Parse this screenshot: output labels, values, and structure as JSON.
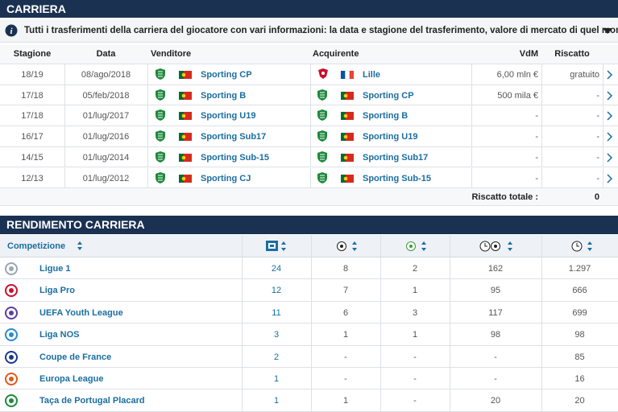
{
  "header": {
    "title": "CARRIERA"
  },
  "info": {
    "text": "Tutti i trasferimenti della carriera del giocatore con vari informazioni: la data e stagione del trasferimento, valore di mercato di quel momento..."
  },
  "transfers": {
    "columns": [
      "Stagione",
      "Data",
      "Venditore",
      "Acquirente",
      "VdM",
      "Riscatto"
    ],
    "rows": [
      [
        "18/19",
        "08/ago/2018",
        "Sporting CP",
        "Lille",
        "6,00 mln €",
        "gratuito"
      ],
      [
        "17/18",
        "05/feb/2018",
        "Sporting B",
        "Sporting CP",
        "500 mila €",
        "-"
      ],
      [
        "17/18",
        "01/lug/2017",
        "Sporting U19",
        "Sporting B",
        "-",
        "-"
      ],
      [
        "16/17",
        "01/lug/2016",
        "Sporting Sub17",
        "Sporting U19",
        "-",
        "-"
      ],
      [
        "14/15",
        "01/lug/2014",
        "Sporting Sub-15",
        "Sporting Sub17",
        "-",
        "-"
      ],
      [
        "12/13",
        "01/lug/2012",
        "Sporting CJ",
        "Sporting Sub-15",
        "-",
        "-"
      ]
    ],
    "total_label": "Riscatto totale :",
    "total_value": "0"
  },
  "performance": {
    "title": "RENDIMENTO CARRIERA",
    "column": "Competizione",
    "rows": [
      [
        "Ligue 1",
        "24",
        "8",
        "2",
        "162",
        "1.297"
      ],
      [
        "Liga Pro",
        "12",
        "7",
        "1",
        "95",
        "666"
      ],
      [
        "UEFA Youth League",
        "11",
        "6",
        "3",
        "117",
        "699"
      ],
      [
        "Liga NOS",
        "3",
        "1",
        "1",
        "98",
        "98"
      ],
      [
        "Coupe de France",
        "2",
        "-",
        "-",
        "-",
        "85"
      ],
      [
        "Europa League",
        "1",
        "-",
        "-",
        "-",
        "16"
      ],
      [
        "Taça de Portugal Placard",
        "1",
        "1",
        "-",
        "20",
        "20"
      ]
    ]
  }
}
